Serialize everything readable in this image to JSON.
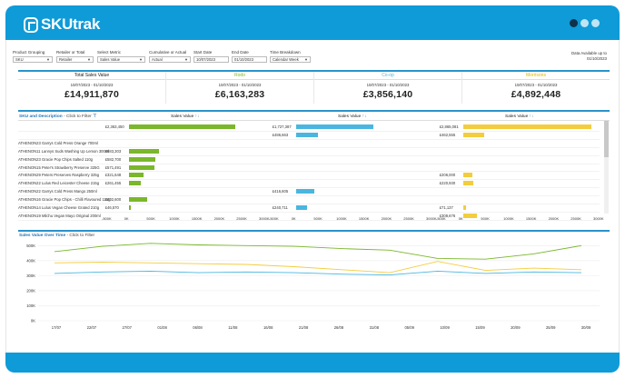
{
  "app": {
    "brand": "SKUtrak",
    "colors": {
      "header": "#0f9bd7",
      "rodo": "#7ab72b",
      "coop": "#4ab6e0",
      "morrisons": "#f3cd3d"
    },
    "page_dots": 3,
    "active_dot": 0
  },
  "filters": [
    {
      "label": "Product Grouping",
      "value": "SKU"
    },
    {
      "label": "Retailer or Total",
      "value": "Retailer"
    },
    {
      "label": "Select Metric",
      "value": "Sales Value"
    },
    {
      "label": "Cumulative or Actual",
      "value": "Actual"
    },
    {
      "label": "Start Date",
      "value": "10/07/2023"
    },
    {
      "label": "End Date",
      "value": "01/10/2023"
    },
    {
      "label": "Time Breakdown",
      "value": "Calendar Week"
    }
  ],
  "availability": {
    "label": "Data Available up to",
    "date": "01/10/2023"
  },
  "kpis": [
    {
      "name": "Total Sales Value",
      "dates": "10/07/2023 - 01/10/2023",
      "value": "£14,911,870",
      "color": "#222222"
    },
    {
      "name": "Rodo",
      "dates": "10/07/2023 - 01/10/2023",
      "value": "£6,163,283",
      "color": "#7ab72b"
    },
    {
      "name": "Co-op",
      "dates": "10/07/2023 - 01/10/2023",
      "value": "£3,856,140",
      "color": "#4ab6e0"
    },
    {
      "name": "Morrisons",
      "dates": "10/07/2023 - 01/10/2023",
      "value": "£4,892,448",
      "color": "#e0b400"
    }
  ],
  "sku_table": {
    "title": "SKU and Description",
    "hint": "- Click to Filter",
    "column_header": "Sales Value",
    "sort_glyph": "↑↓",
    "rows": [
      "",
      "",
      "ATHENON23 Garrys Cold Press Orange 700ml",
      "ATHENON11 Lannys Suds Washing Up Lemon 300ml",
      "ATHENON23 Gracie Pop Chips Salted 110g",
      "ATHENON15 Peter's Strawberry Preserve 325G",
      "ATHENON29 Peters Preserves Raspberry 325g",
      "ATHENON22 Lulus Red Leicester Cheese 215g",
      "ATHENON22 Garrys Cold Press Mango 250ml",
      "ATHENON16 Gracie Pop Chips - Chilli Flavoured 115g",
      "ATHENON14 Lulus Vegan Cheese Grated 210g",
      "ATHENON19 Milchu Vegan Mayo Original 200ml"
    ],
    "rodo": [
      "£2,363,450",
      "",
      "",
      "£683,303",
      "£582,700",
      "£571,491",
      "£321,648",
      "£261,455",
      "",
      "£402,600",
      "£46,570",
      ""
    ],
    "coop": [
      "£1,727,387",
      "£486,663",
      "",
      "",
      "",
      "",
      "",
      "",
      "£416,605",
      "",
      "£240,711",
      ""
    ],
    "morrisons": [
      "£2,865,081",
      "£462,555",
      "",
      "",
      "",
      "",
      "£206,000",
      "£220,930",
      "",
      "",
      "£71,137",
      "£308,676"
    ],
    "rodo_values": [
      2363450,
      null,
      null,
      683303,
      582700,
      571491,
      321648,
      261455,
      null,
      402600,
      46570,
      null
    ],
    "coop_values": [
      1727387,
      486663,
      null,
      null,
      null,
      null,
      null,
      null,
      416605,
      null,
      240711,
      null
    ],
    "morrisons_values": [
      2865081,
      462555,
      null,
      null,
      null,
      null,
      206000,
      220930,
      null,
      null,
      71137,
      308676
    ],
    "axis_ticks": [
      "-500K",
      "0K",
      "500K",
      "1000K",
      "1500K",
      "2000K",
      "2500K",
      "3000K"
    ],
    "axis_values": [
      -500000,
      0,
      500000,
      1000000,
      1500000,
      2000000,
      2500000,
      3000000
    ]
  },
  "line_chart": {
    "title": "Sales Value Over Time",
    "hint": "- Click to Filter",
    "y_ticks": [
      "500K",
      "400K",
      "300K",
      "200K",
      "100K",
      "0K"
    ],
    "y_values": [
      500000,
      400000,
      300000,
      200000,
      100000,
      0
    ],
    "x_ticks": [
      "17/07",
      "22/07",
      "27/07",
      "01/08",
      "06/08",
      "11/08",
      "16/08",
      "21/08",
      "26/08",
      "31/08",
      "05/09",
      "10/09",
      "15/09",
      "20/09",
      "25/09",
      "30/09"
    ]
  },
  "chart_data": {
    "type": "line",
    "x": [
      "16/07",
      "23/07",
      "30/07",
      "06/08",
      "13/08",
      "20/08",
      "27/08",
      "03/09",
      "10/09",
      "17/09",
      "24/09",
      "01/10"
    ],
    "ylim": [
      0,
      520000
    ],
    "series": [
      {
        "name": "Rodo",
        "color": "#7ab72b",
        "values": [
          460000,
          495000,
          515000,
          505000,
          500000,
          495000,
          480000,
          470000,
          415000,
          410000,
          445000,
          500000
        ]
      },
      {
        "name": "Morrisons",
        "color": "#f3cd3d",
        "values": [
          385000,
          390000,
          385000,
          380000,
          375000,
          360000,
          340000,
          320000,
          395000,
          335000,
          350000,
          340000
        ]
      },
      {
        "name": "Co-op",
        "color": "#4ab6e0",
        "values": [
          315000,
          325000,
          330000,
          320000,
          325000,
          320000,
          310000,
          305000,
          330000,
          315000,
          325000,
          320000
        ]
      }
    ]
  }
}
